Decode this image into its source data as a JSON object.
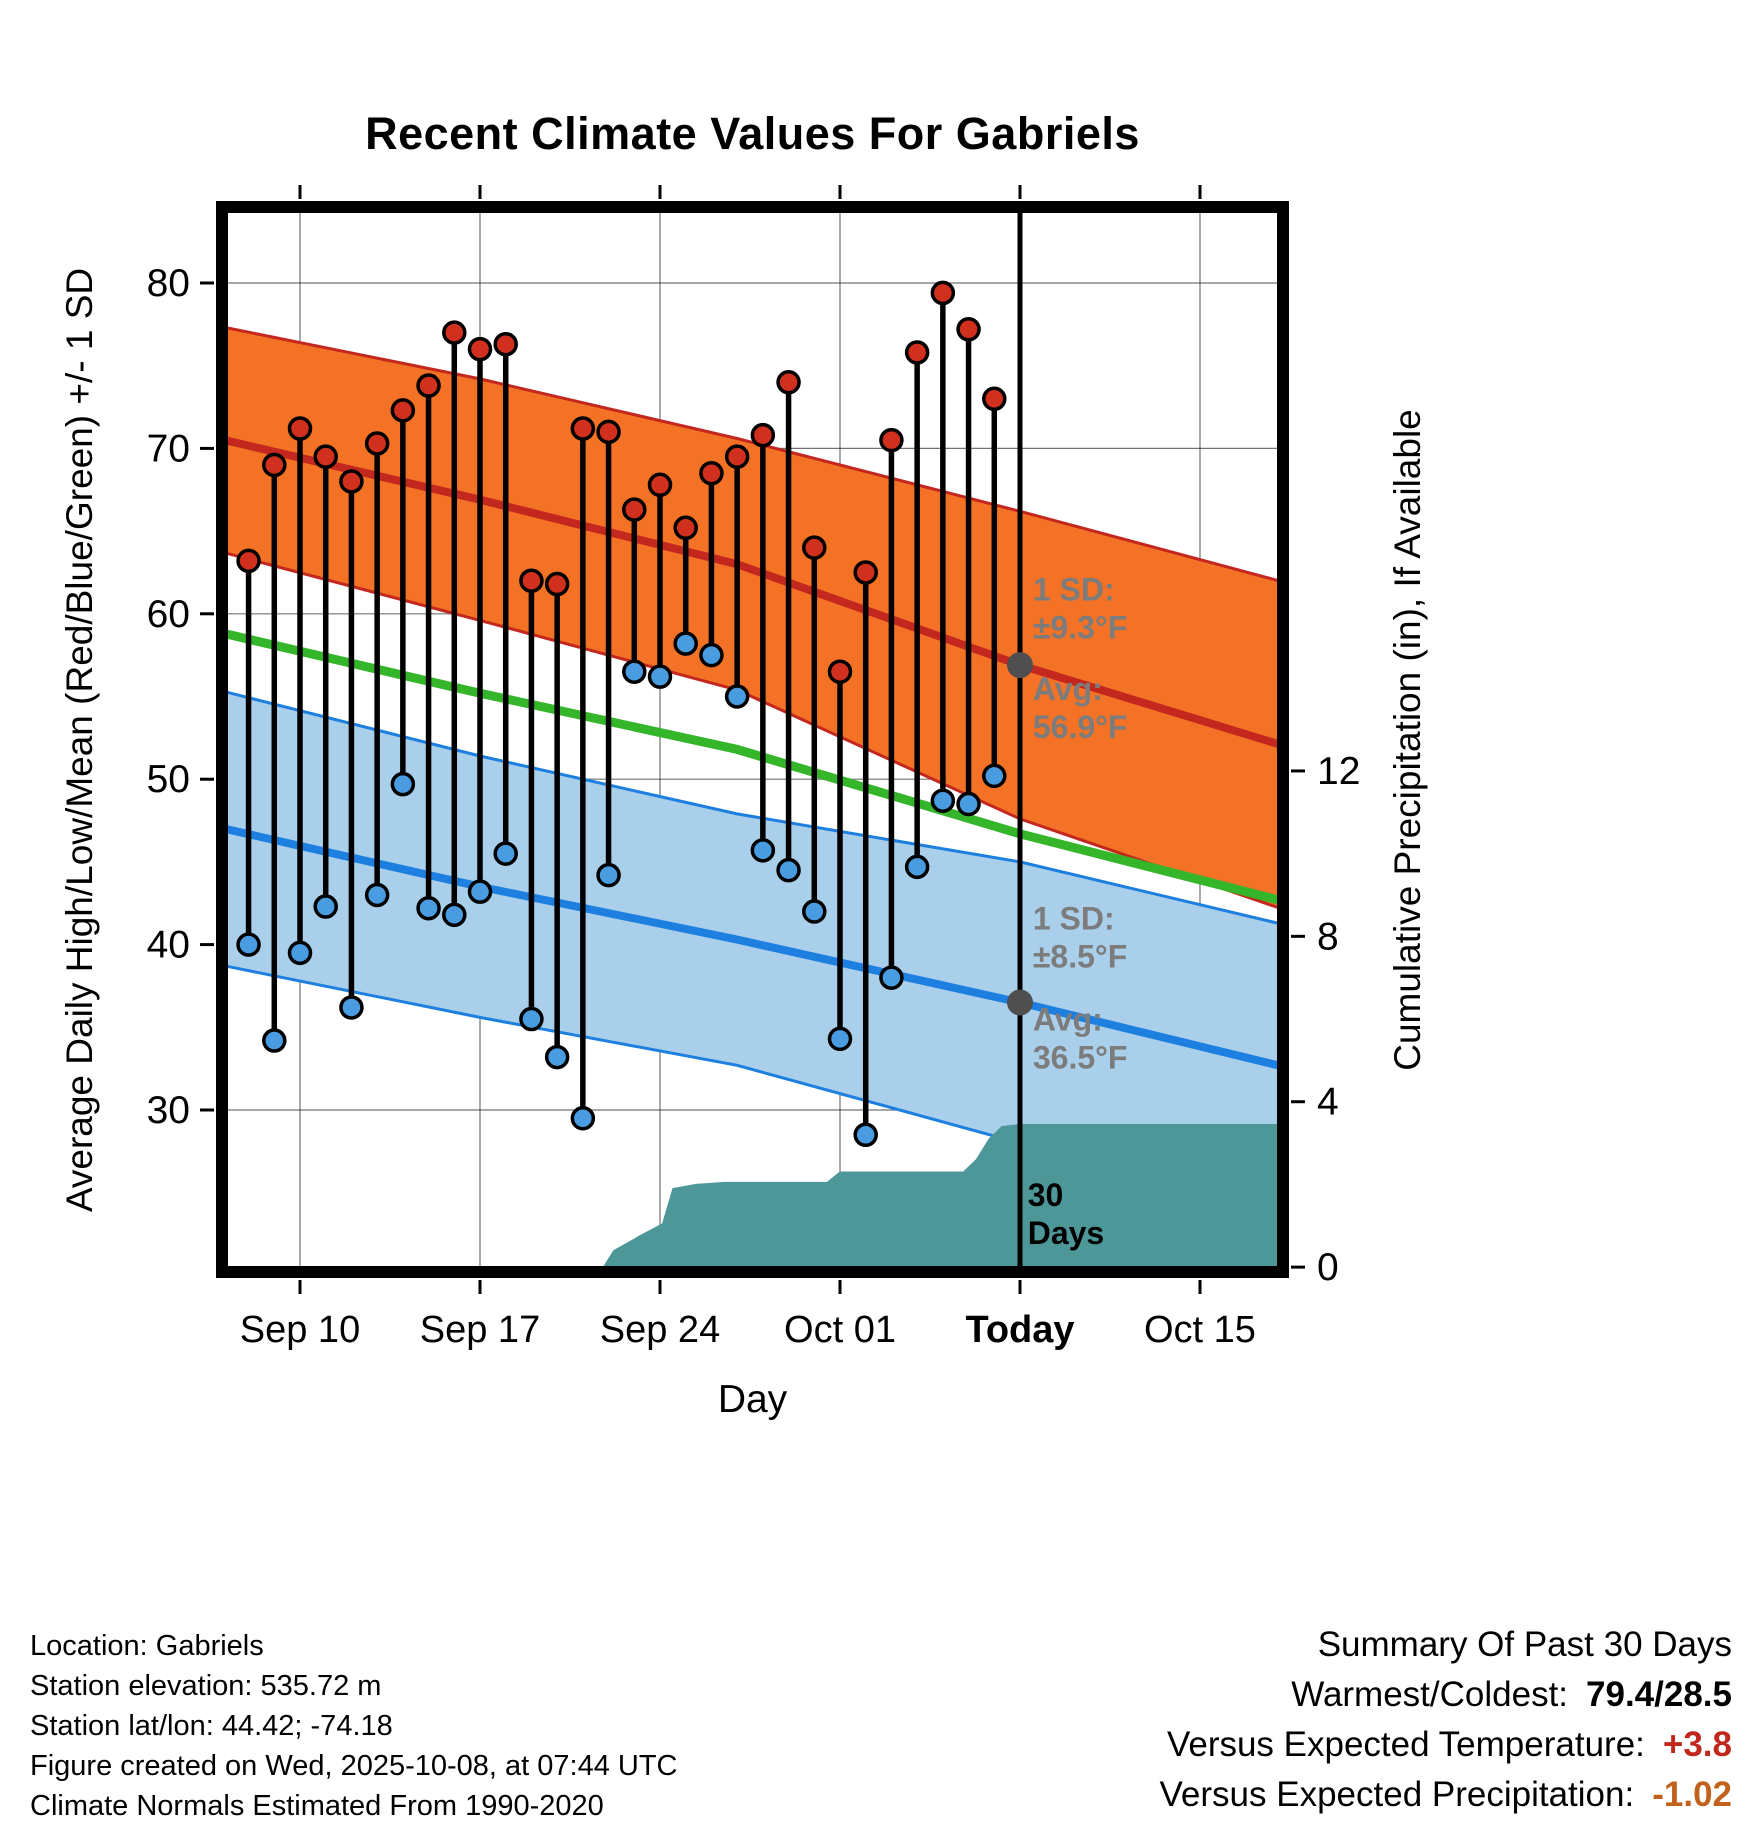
{
  "title": "Recent Climate Values For Gabriels",
  "axes": {
    "left_label": "Average Daily High/Low/Mean (Red/Blue/Green) +/- 1 SD",
    "right_label": "Cumulative Precipitation (in), If Available",
    "x_label": "Day"
  },
  "footer": {
    "lines": [
      "Location: Gabriels",
      "Station elevation: 535.72 m",
      "Station lat/lon: 44.42; -74.18",
      "Figure created on Wed, 2025-10-08, at 07:44 UTC",
      "Climate Normals Estimated From 1990-2020"
    ]
  },
  "summary": {
    "title": "Summary Of Past 30 Days",
    "rows": [
      {
        "label": "Warmest/Coldest:",
        "value": "79.4/28.5",
        "color": "#000000"
      },
      {
        "label": "Versus Expected Temperature:",
        "value": "+3.8",
        "color": "#c0281e"
      },
      {
        "label": "Versus Expected Precipitation:",
        "value": "-1.02",
        "color": "#c2611c"
      }
    ]
  },
  "chart_data": {
    "type": "line",
    "title": "Recent Climate Values For Gabriels",
    "xlabel": "Day",
    "ylabel_left": "Average Daily High/Low/Mean (Red/Blue/Green) +/- 1 SD",
    "ylabel_right": "Cumulative Precipitation (in), If Available",
    "x_unit": "days since Sep 10",
    "x_range_days": [
      -3.2,
      38.3
    ],
    "y_temp_range": [
      20.5,
      84.6
    ],
    "y_temp_ticks": [
      30,
      40,
      50,
      60,
      70,
      80
    ],
    "y_precip_ticks": [
      {
        "value": 0,
        "label": "0"
      },
      {
        "value": 4,
        "label": "4"
      },
      {
        "value": 8,
        "label": "8"
      },
      {
        "value": 12,
        "label": "12"
      }
    ],
    "x_ticks": [
      {
        "day": 0,
        "label": "Sep 10",
        "bold": false
      },
      {
        "day": 7,
        "label": "Sep 17",
        "bold": false
      },
      {
        "day": 14,
        "label": "Sep 24",
        "bold": false
      },
      {
        "day": 21,
        "label": "Oct 01",
        "bold": false
      },
      {
        "day": 28,
        "label": "Today",
        "bold": true
      },
      {
        "day": 35,
        "label": "Oct 15",
        "bold": false
      }
    ],
    "today_day": 28,
    "days": [
      {
        "date": "Sep 08",
        "high": 63.2,
        "low": 40.0
      },
      {
        "date": "Sep 09",
        "high": 69.0,
        "low": 34.2
      },
      {
        "date": "Sep 10",
        "high": 71.2,
        "low": 39.5
      },
      {
        "date": "Sep 11",
        "high": 69.5,
        "low": 42.3
      },
      {
        "date": "Sep 12",
        "high": 68.0,
        "low": 36.2
      },
      {
        "date": "Sep 13",
        "high": 70.3,
        "low": 43.0
      },
      {
        "date": "Sep 14",
        "high": 72.3,
        "low": 49.7
      },
      {
        "date": "Sep 15",
        "high": 73.8,
        "low": 42.2
      },
      {
        "date": "Sep 16",
        "high": 77.0,
        "low": 41.8
      },
      {
        "date": "Sep 17",
        "high": 76.0,
        "low": 43.2
      },
      {
        "date": "Sep 18",
        "high": 76.3,
        "low": 45.5
      },
      {
        "date": "Sep 19",
        "high": 62.0,
        "low": 35.5
      },
      {
        "date": "Sep 20",
        "high": 61.8,
        "low": 33.2
      },
      {
        "date": "Sep 21",
        "high": 71.2,
        "low": 29.5
      },
      {
        "date": "Sep 22",
        "high": 71.0,
        "low": 44.2
      },
      {
        "date": "Sep 23",
        "high": 66.3,
        "low": 56.5
      },
      {
        "date": "Sep 24",
        "high": 67.8,
        "low": 56.2
      },
      {
        "date": "Sep 25",
        "high": 65.2,
        "low": 58.2
      },
      {
        "date": "Sep 26",
        "high": 68.5,
        "low": 57.5
      },
      {
        "date": "Sep 27",
        "high": 69.5,
        "low": 55.0
      },
      {
        "date": "Sep 28",
        "high": 70.8,
        "low": 45.7
      },
      {
        "date": "Sep 29",
        "high": 74.0,
        "low": 44.5
      },
      {
        "date": "Sep 30",
        "high": 64.0,
        "low": 42.0
      },
      {
        "date": "Oct 01",
        "high": 56.5,
        "low": 34.3
      },
      {
        "date": "Oct 02",
        "high": 62.5,
        "low": 28.5
      },
      {
        "date": "Oct 03",
        "high": 70.5,
        "low": 38.0
      },
      {
        "date": "Oct 04",
        "high": 75.8,
        "low": 44.7
      },
      {
        "date": "Oct 05",
        "high": 79.4,
        "low": 48.7
      },
      {
        "date": "Oct 06",
        "high": 77.2,
        "low": 48.5
      },
      {
        "date": "Oct 07",
        "high": 73.0,
        "low": 50.2
      }
    ],
    "normals": {
      "high_upper": [
        [
          -3.2,
          77.4
        ],
        [
          7,
          74.2
        ],
        [
          17,
          70.6
        ],
        [
          28,
          66.2
        ],
        [
          38.3,
          61.9
        ]
      ],
      "high_mean": [
        [
          -3.2,
          70.6
        ],
        [
          7,
          66.9
        ],
        [
          17,
          63.0
        ],
        [
          28,
          56.9
        ],
        [
          38.3,
          52.0
        ]
      ],
      "high_lower": [
        [
          -3.2,
          63.8
        ],
        [
          7,
          59.6
        ],
        [
          17,
          55.4
        ],
        [
          28,
          47.6
        ],
        [
          38.3,
          42.1
        ]
      ],
      "mean_green": [
        [
          -3.2,
          58.9
        ],
        [
          7,
          55.2
        ],
        [
          17,
          51.8
        ],
        [
          28,
          46.7
        ],
        [
          38.3,
          42.6
        ]
      ],
      "low_upper": [
        [
          -3.2,
          55.4
        ],
        [
          7,
          51.4
        ],
        [
          17,
          47.9
        ],
        [
          28,
          45.0
        ],
        [
          38.3,
          41.2
        ]
      ],
      "low_mean": [
        [
          -3.2,
          47.1
        ],
        [
          7,
          43.5
        ],
        [
          17,
          40.3
        ],
        [
          28,
          36.5
        ],
        [
          38.3,
          32.6
        ]
      ],
      "low_lower": [
        [
          -3.2,
          38.8
        ],
        [
          7,
          35.6
        ],
        [
          17,
          32.7
        ],
        [
          28,
          28.0
        ],
        [
          38.3,
          24.0
        ]
      ]
    },
    "precip_cumulative": [
      [
        11.8,
        0.0
      ],
      [
        12.2,
        0.4
      ],
      [
        13.2,
        0.75
      ],
      [
        14.1,
        1.05
      ],
      [
        14.5,
        1.9
      ],
      [
        15.4,
        2.0
      ],
      [
        16.5,
        2.05
      ],
      [
        20.5,
        2.05
      ],
      [
        21.0,
        2.3
      ],
      [
        25.8,
        2.3
      ],
      [
        26.3,
        2.6
      ],
      [
        26.8,
        3.1
      ],
      [
        27.3,
        3.4
      ],
      [
        28.0,
        3.45
      ],
      [
        38.3,
        3.45
      ]
    ],
    "today_markers": [
      {
        "day": 28,
        "temp": 56.9
      },
      {
        "day": 28,
        "temp": 36.5
      }
    ],
    "annotations": [
      {
        "day": 28.5,
        "temp": 60.8,
        "lines": [
          "1 SD:",
          "±9.3°F"
        ],
        "color": "#7c7c7c"
      },
      {
        "day": 28.5,
        "temp": 54.8,
        "lines": [
          "Avg:",
          "56.9°F"
        ],
        "color": "#7c7c7c"
      },
      {
        "day": 28.5,
        "temp": 40.9,
        "lines": [
          "1 SD:",
          "±8.5°F"
        ],
        "color": "#7c7c7c"
      },
      {
        "day": 28.5,
        "temp": 34.8,
        "lines": [
          "Avg:",
          "36.5°F"
        ],
        "color": "#7c7c7c"
      },
      {
        "day": 28.3,
        "temp": 24.2,
        "lines": [
          "30",
          "Days"
        ],
        "color": "#000000"
      }
    ],
    "colors": {
      "high_band": "#f37226",
      "high_line": "#c3271d",
      "high_dot": "#d2301f",
      "low_band": "#a9cfea",
      "low_line": "#1d7fe0",
      "low_dot": "#4a9ce0",
      "mean_line": "#35b52a",
      "precip": "#4d9798",
      "today_marker": "#4f4f4f",
      "grid": "#000000"
    }
  }
}
